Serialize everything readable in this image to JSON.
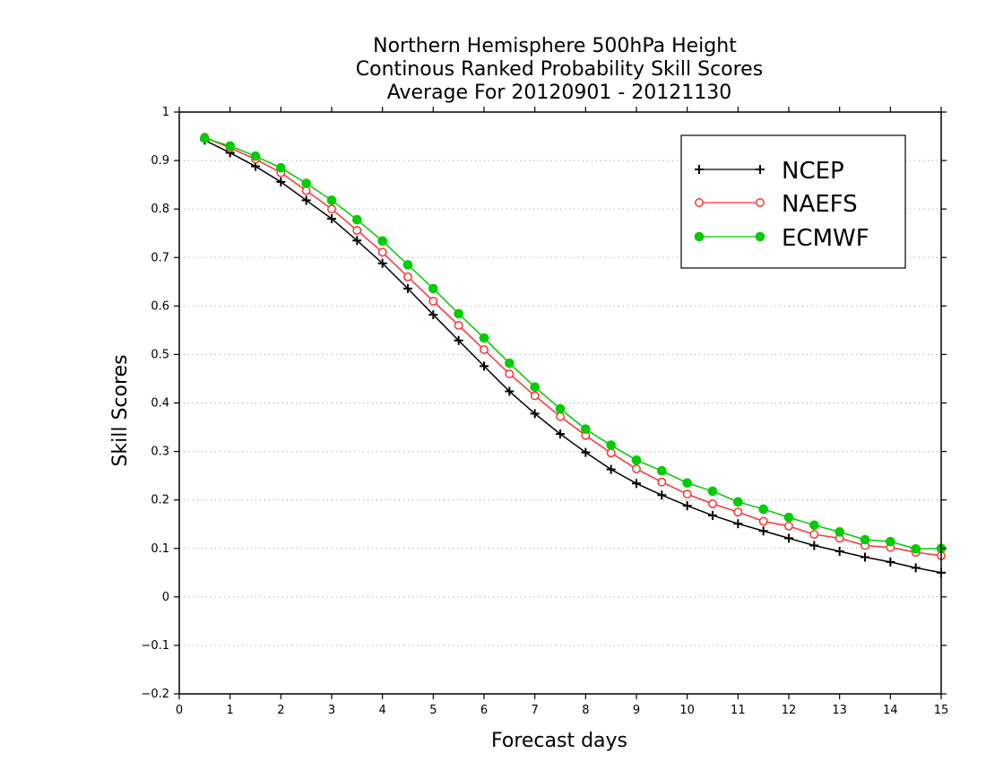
{
  "chart_data": {
    "type": "line",
    "title_lines": [
      "Northern Hemisphere 500hPa Height",
      "Continous Ranked Probability Skill Scores",
      "Average For 20120901 - 20121130"
    ],
    "xlabel": "Forecast days",
    "ylabel": "Skill Scores",
    "xlim": [
      0,
      15
    ],
    "ylim": [
      -0.2,
      1
    ],
    "x_ticks": [
      "0",
      "1",
      "2",
      "3",
      "4",
      "5",
      "6",
      "7",
      "8",
      "9",
      "10",
      "11",
      "12",
      "13",
      "14",
      "15"
    ],
    "y_ticks": [
      "−0.2",
      "−0.1",
      "0",
      "0.1",
      "0.2",
      "0.3",
      "0.4",
      "0.5",
      "0.6",
      "0.7",
      "0.8",
      "0.9",
      "1"
    ],
    "grid": "horizontal dotted",
    "legend_position": "top-right",
    "x": [
      0.5,
      1,
      1.5,
      2,
      2.5,
      3,
      3.5,
      4,
      4.5,
      5,
      5.5,
      6,
      6.5,
      7,
      7.5,
      8,
      8.5,
      9,
      9.5,
      10,
      10.5,
      11,
      11.5,
      12,
      12.5,
      13,
      13.5,
      14,
      14.5,
      15
    ],
    "series": [
      {
        "name": "NCEP",
        "color": "#000000",
        "marker": "plus",
        "values": [
          0.942,
          0.916,
          0.888,
          0.856,
          0.818,
          0.78,
          0.735,
          0.688,
          0.636,
          0.582,
          0.529,
          0.476,
          0.424,
          0.378,
          0.336,
          0.298,
          0.263,
          0.234,
          0.21,
          0.188,
          0.168,
          0.151,
          0.136,
          0.121,
          0.106,
          0.094,
          0.082,
          0.072,
          0.06,
          0.05
        ]
      },
      {
        "name": "NAEFS",
        "color": "#ff3333",
        "marker": "open-circle",
        "values": [
          0.948,
          0.926,
          0.903,
          0.875,
          0.838,
          0.8,
          0.756,
          0.711,
          0.66,
          0.61,
          0.56,
          0.51,
          0.46,
          0.415,
          0.372,
          0.333,
          0.297,
          0.264,
          0.237,
          0.212,
          0.192,
          0.175,
          0.156,
          0.146,
          0.129,
          0.121,
          0.106,
          0.102,
          0.092,
          0.085
        ]
      },
      {
        "name": "ECMWF",
        "color": "#00cc00",
        "marker": "filled-circle",
        "values": [
          0.946,
          0.93,
          0.909,
          0.885,
          0.853,
          0.818,
          0.778,
          0.734,
          0.685,
          0.636,
          0.584,
          0.534,
          0.482,
          0.433,
          0.388,
          0.346,
          0.313,
          0.282,
          0.26,
          0.235,
          0.218,
          0.196,
          0.181,
          0.164,
          0.148,
          0.134,
          0.118,
          0.114,
          0.099,
          0.1
        ]
      }
    ]
  }
}
